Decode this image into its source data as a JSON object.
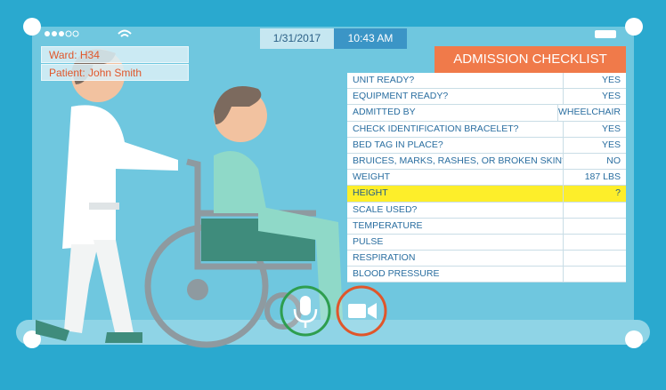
{
  "status_bar": {
    "date": "1/31/2017",
    "time": "10:43 AM"
  },
  "patient_card": {
    "ward": "Ward: H34",
    "patient": "Patient: John Smith"
  },
  "checklist": {
    "title": "ADMISSION CHECKLIST",
    "rows": [
      {
        "label": "UNIT READY?",
        "value": "YES"
      },
      {
        "label": "EQUIPMENT READY?",
        "value": "YES"
      },
      {
        "label": "ADMITTED BY",
        "value": "WHEELCHAIR"
      },
      {
        "label": "CHECK IDENTIFICATION BRACELET?",
        "value": "YES"
      },
      {
        "label": "BED TAG IN PLACE?",
        "value": "YES"
      },
      {
        "label": "BRUICES, MARKS, RASHES, OR BROKEN SKIN?",
        "value": "NO"
      },
      {
        "label": "WEIGHT",
        "value": "187 LBS"
      },
      {
        "label": "HEIGHT",
        "value": "?",
        "highlight": true
      },
      {
        "label": "SCALE USED?"
      },
      {
        "label": "TEMPERATURE"
      },
      {
        "label": "PULSE"
      },
      {
        "label": "RESPIRATION"
      },
      {
        "label": "BLOOD PRESSURE"
      }
    ]
  }
}
